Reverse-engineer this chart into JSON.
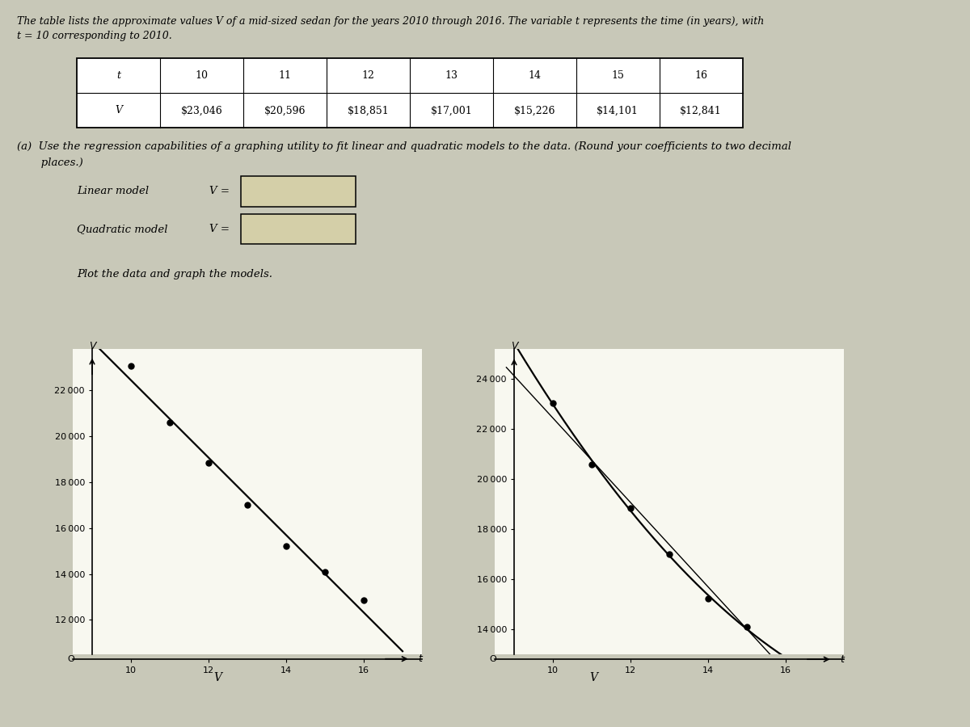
{
  "title_line1": "The table lists the approximate values V of a mid-sized sedan for the years 2010 through 2016. The variable t represents the time (in years), with",
  "title_line2": "t = 10 corresponding to 2010.",
  "t_values": [
    10,
    11,
    12,
    13,
    14,
    15,
    16
  ],
  "V_values": [
    23046,
    20596,
    18851,
    17001,
    15226,
    14101,
    12841
  ],
  "V_labels": [
    "$23,046",
    "$20,596",
    "$18,851",
    "$17,001",
    "$15,226",
    "$14,101",
    "$12,841"
  ],
  "part_a_line1": "(a)  Use the regression capabilities of a graphing utility to fit linear and quadratic models to the data. (Round your coefficients to two decimal",
  "part_a_line2": "       places.)",
  "plot1_yticks": [
    12000,
    14000,
    16000,
    18000,
    20000,
    22000
  ],
  "plot1_xticks": [
    10,
    12,
    14,
    16
  ],
  "plot1_ylim_low": 10500,
  "plot1_ylim_high": 23800,
  "plot1_xlim_low": 8.5,
  "plot1_xlim_high": 17.5,
  "plot2_yticks": [
    14000,
    16000,
    18000,
    20000,
    22000,
    24000
  ],
  "plot2_xticks": [
    10,
    12,
    14,
    16
  ],
  "plot2_ylim_low": 13000,
  "plot2_ylim_high": 25200,
  "plot2_xlim_low": 8.5,
  "plot2_xlim_high": 17.5,
  "bg_color": "#c8c8b8",
  "page_color": "#f0ede0",
  "table_bg": "#ffffff",
  "plot_bg": "#f8f8f0",
  "box_color": "#d4cfa8",
  "text_color": "#000000",
  "dot_size": 5,
  "font_size_title": 9,
  "font_size_table": 9,
  "font_size_body": 9.5,
  "font_size_plot": 8.5
}
